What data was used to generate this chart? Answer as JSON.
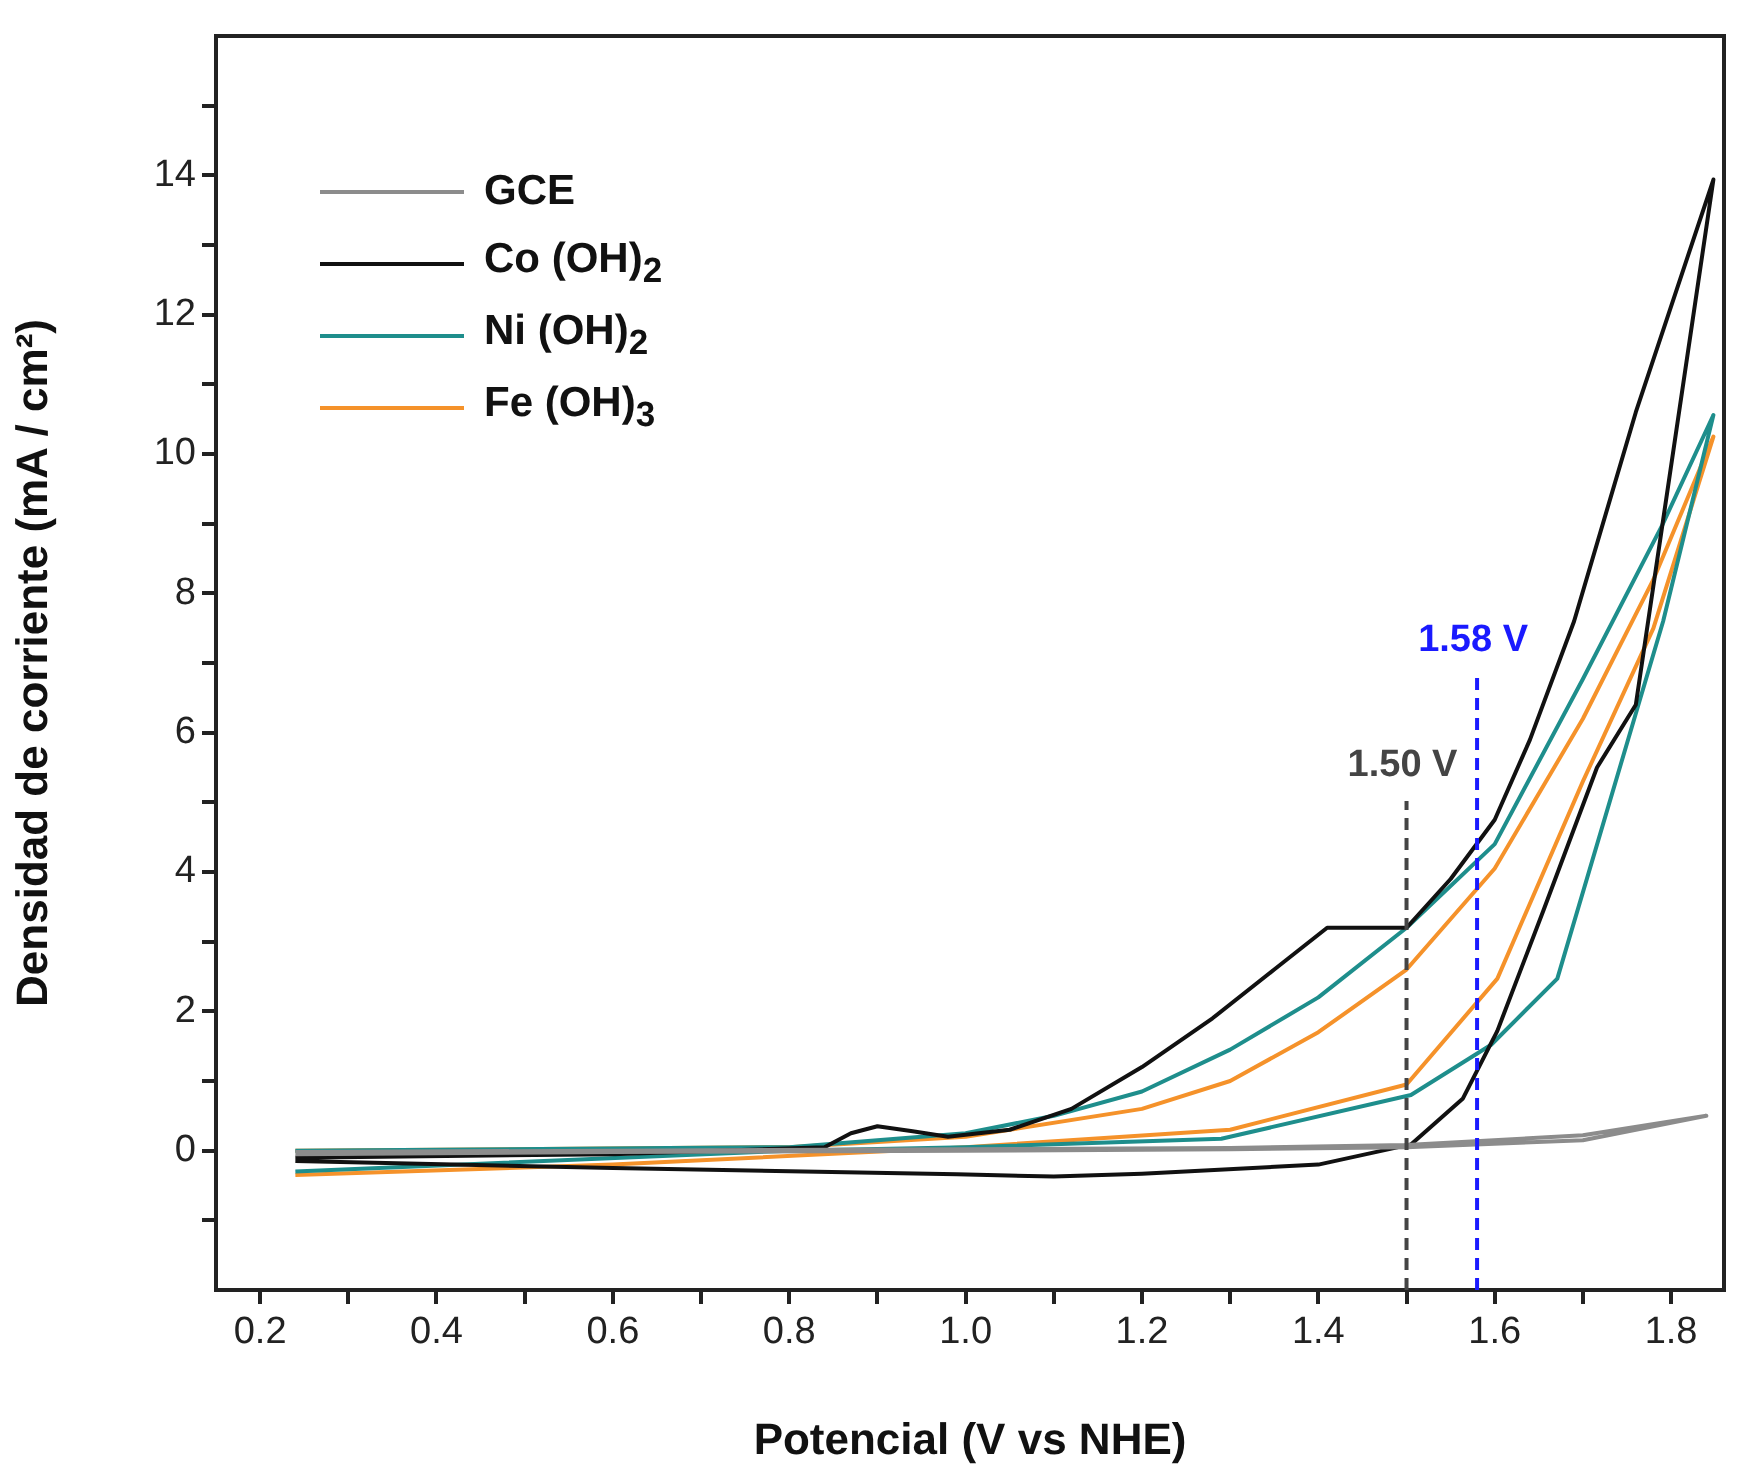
{
  "chart_data": {
    "type": "line",
    "xlabel": "Potencial (V vs NHE)",
    "ylabel": "Densidad de corriente (mA / cm²)",
    "xlim": [
      0.15,
      1.86
    ],
    "ylim": [
      -2,
      16
    ],
    "xticks": [
      0.2,
      {
        "value": 0.3,
        "label": null
      },
      0.4,
      {
        "value": 0.5,
        "label": null
      },
      0.6,
      {
        "value": 0.7,
        "label": null
      },
      0.8,
      {
        "value": 0.9,
        "label": null
      },
      {
        "value": 1.0,
        "label": "1.0"
      },
      {
        "value": 1.1,
        "label": null
      },
      1.2,
      {
        "value": 1.3,
        "label": null
      },
      1.4,
      {
        "value": 1.5,
        "label": null
      },
      1.6,
      {
        "value": 1.7,
        "label": null
      },
      1.8
    ],
    "yticks": [
      {
        "value": -1,
        "label": null
      },
      0,
      {
        "value": 1,
        "label": null
      },
      2,
      {
        "value": 3,
        "label": null
      },
      4,
      {
        "value": 5,
        "label": null
      },
      6,
      {
        "value": 7,
        "label": null
      },
      8,
      {
        "value": 9,
        "label": null
      },
      10,
      {
        "value": 11,
        "label": null
      },
      12,
      {
        "value": 13,
        "label": null
      },
      14,
      {
        "value": 15,
        "label": null
      }
    ],
    "grid": false,
    "legend": "top left",
    "marker": "none",
    "line_style": "solid",
    "series": [
      {
        "name": "GCE",
        "color": "#8c8c8c",
        "x": [
          0.24,
          0.6,
          1.0,
          1.3,
          1.5,
          1.7,
          1.84,
          1.7,
          1.5,
          1.3,
          1.0,
          0.6,
          0.24
        ],
        "values": [
          -0.02,
          0.0,
          0.02,
          0.04,
          0.08,
          0.22,
          0.5,
          0.15,
          0.05,
          0.02,
          0.0,
          -0.02,
          -0.05
        ]
      },
      {
        "name": "Co (OH)$_{2}$",
        "color": "#111111",
        "x": [
          0.24,
          0.6,
          0.84,
          0.87,
          0.9,
          0.94,
          0.98,
          1.05,
          1.12,
          1.2,
          1.28,
          1.35,
          1.41,
          1.45,
          1.5,
          1.55,
          1.6,
          1.64,
          1.69,
          1.76,
          1.848,
          1.76,
          1.716,
          1.655,
          1.603,
          1.564,
          1.505,
          1.4,
          1.2,
          1.1,
          0.99,
          0.6,
          0.24
        ],
        "values": [
          -0.1,
          -0.05,
          0.05,
          0.25,
          0.35,
          0.28,
          0.2,
          0.3,
          0.6,
          1.2,
          1.9,
          2.6,
          3.2,
          3.2,
          3.2,
          3.9,
          4.75,
          5.9,
          7.6,
          10.6,
          13.94,
          6.4,
          5.5,
          3.44,
          1.72,
          0.75,
          0.09,
          -0.2,
          -0.33,
          -0.37,
          -0.34,
          -0.25,
          -0.15
        ]
      },
      {
        "name": "Ni (OH)$_{2}$",
        "color": "#1e8e8c",
        "x": [
          0.24,
          0.8,
          1.0,
          1.1,
          1.2,
          1.3,
          1.4,
          1.5,
          1.6,
          1.7,
          1.79,
          1.848,
          1.791,
          1.671,
          1.596,
          1.505,
          1.29,
          1.0,
          0.8,
          0.24
        ],
        "values": [
          0.0,
          0.05,
          0.25,
          0.5,
          0.85,
          1.45,
          2.2,
          3.2,
          4.4,
          6.77,
          8.98,
          10.56,
          7.6,
          2.47,
          1.52,
          0.8,
          0.17,
          0.05,
          0.0,
          -0.3
        ]
      },
      {
        "name": "Fe (OH)$_{3}$",
        "color": "#f5922a",
        "x": [
          0.24,
          0.8,
          1.0,
          1.2,
          1.3,
          1.4,
          1.5,
          1.6,
          1.7,
          1.78,
          1.848,
          1.78,
          1.7,
          1.603,
          1.5,
          1.3,
          1.0,
          0.6,
          0.24
        ],
        "values": [
          0.0,
          0.05,
          0.2,
          0.6,
          1.0,
          1.7,
          2.6,
          4.05,
          6.2,
          8.2,
          10.25,
          7.5,
          5.3,
          2.47,
          0.95,
          0.3,
          0.05,
          -0.2,
          -0.35
        ]
      }
    ],
    "ref_lines": [
      {
        "axis": "x",
        "value": 1.5,
        "label": "1.50 V",
        "color": "#444444",
        "line_style": "dashed"
      },
      {
        "axis": "x",
        "value": 1.58,
        "label": "1.58 V",
        "color": "#1a1aff",
        "line_style": "dashed"
      }
    ]
  }
}
